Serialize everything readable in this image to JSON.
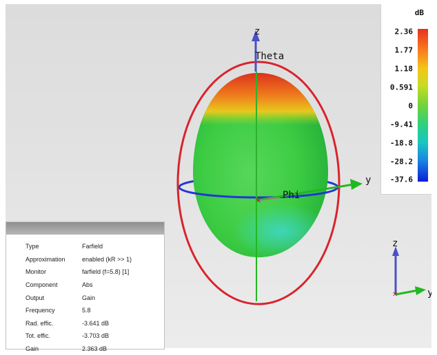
{
  "scene": {
    "axis_z": "z",
    "axis_theta": "Theta",
    "axis_phi": "Phi",
    "axis_y": "y",
    "triad_z": "z",
    "triad_y": "y",
    "colors": {
      "e_circle": "#d9232b",
      "h_circle": "#2236d6",
      "y_axis": "#21b820",
      "z_axis": "#4a50c8",
      "pattern_top": "#e63a24",
      "pattern_body": "#3bd33e"
    }
  },
  "colorbar": {
    "unit": "dB",
    "labels": [
      "2.36",
      "1.77",
      "1.18",
      "0.591",
      "0",
      "-9.41",
      "-18.8",
      "-28.2",
      "-37.6"
    ]
  },
  "info_panel": {
    "rows": [
      {
        "key": "Type",
        "value": "Farfield"
      },
      {
        "key": "Approximation",
        "value": "enabled (kR >> 1)"
      },
      {
        "key": "Monitor",
        "value": "farfield (f=5.8) [1]"
      },
      {
        "key": "Component",
        "value": "Abs"
      },
      {
        "key": "Output",
        "value": "Gain"
      },
      {
        "key": "Frequency",
        "value": "5.8"
      },
      {
        "key": "Rad. effic.",
        "value": "-3.641 dB"
      },
      {
        "key": "Tot. effic.",
        "value": "-3.703 dB"
      },
      {
        "key": "Gain",
        "value": "2.363 dB"
      }
    ]
  }
}
